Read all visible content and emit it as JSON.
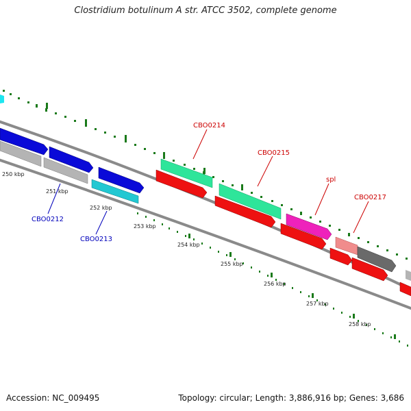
{
  "title": "Clostridium botulinum A str. ATCC 3502, complete genome",
  "footer": {
    "accession": "Accession: NC_009495",
    "summary": "Topology: circular; Length: 3,886,916 bp; Genes: 3,686"
  },
  "ticks": [
    "250 kbp",
    "251 kbp",
    "252 kbp",
    "253 kbp",
    "254 kbp",
    "255 kbp",
    "256 kbp",
    "257 kbp",
    "258 kbp"
  ],
  "gene_labels": {
    "cbo0212": "CBO0212",
    "cbo0213": "CBO0213",
    "cbo0214": "CBO0214",
    "cbo0215": "CBO0215",
    "spl": "spl",
    "cbo0217": "CBO0217"
  },
  "colors": {
    "backbone": "#8a8a8a",
    "gc_dots": "#1a7a1a",
    "cds_blue": "#0a0ad8",
    "cds_cyan": "#22c8d2",
    "cds_gray": "#b4b4b4",
    "cds_green": "#2ee59a",
    "cds_red": "#ee1111",
    "cds_magenta": "#ee22bb",
    "cds_pink": "#f08c8c",
    "cds_darkgray": "#6a6a6a",
    "label_red": "#cc0000",
    "label_blue": "#0000bb"
  }
}
